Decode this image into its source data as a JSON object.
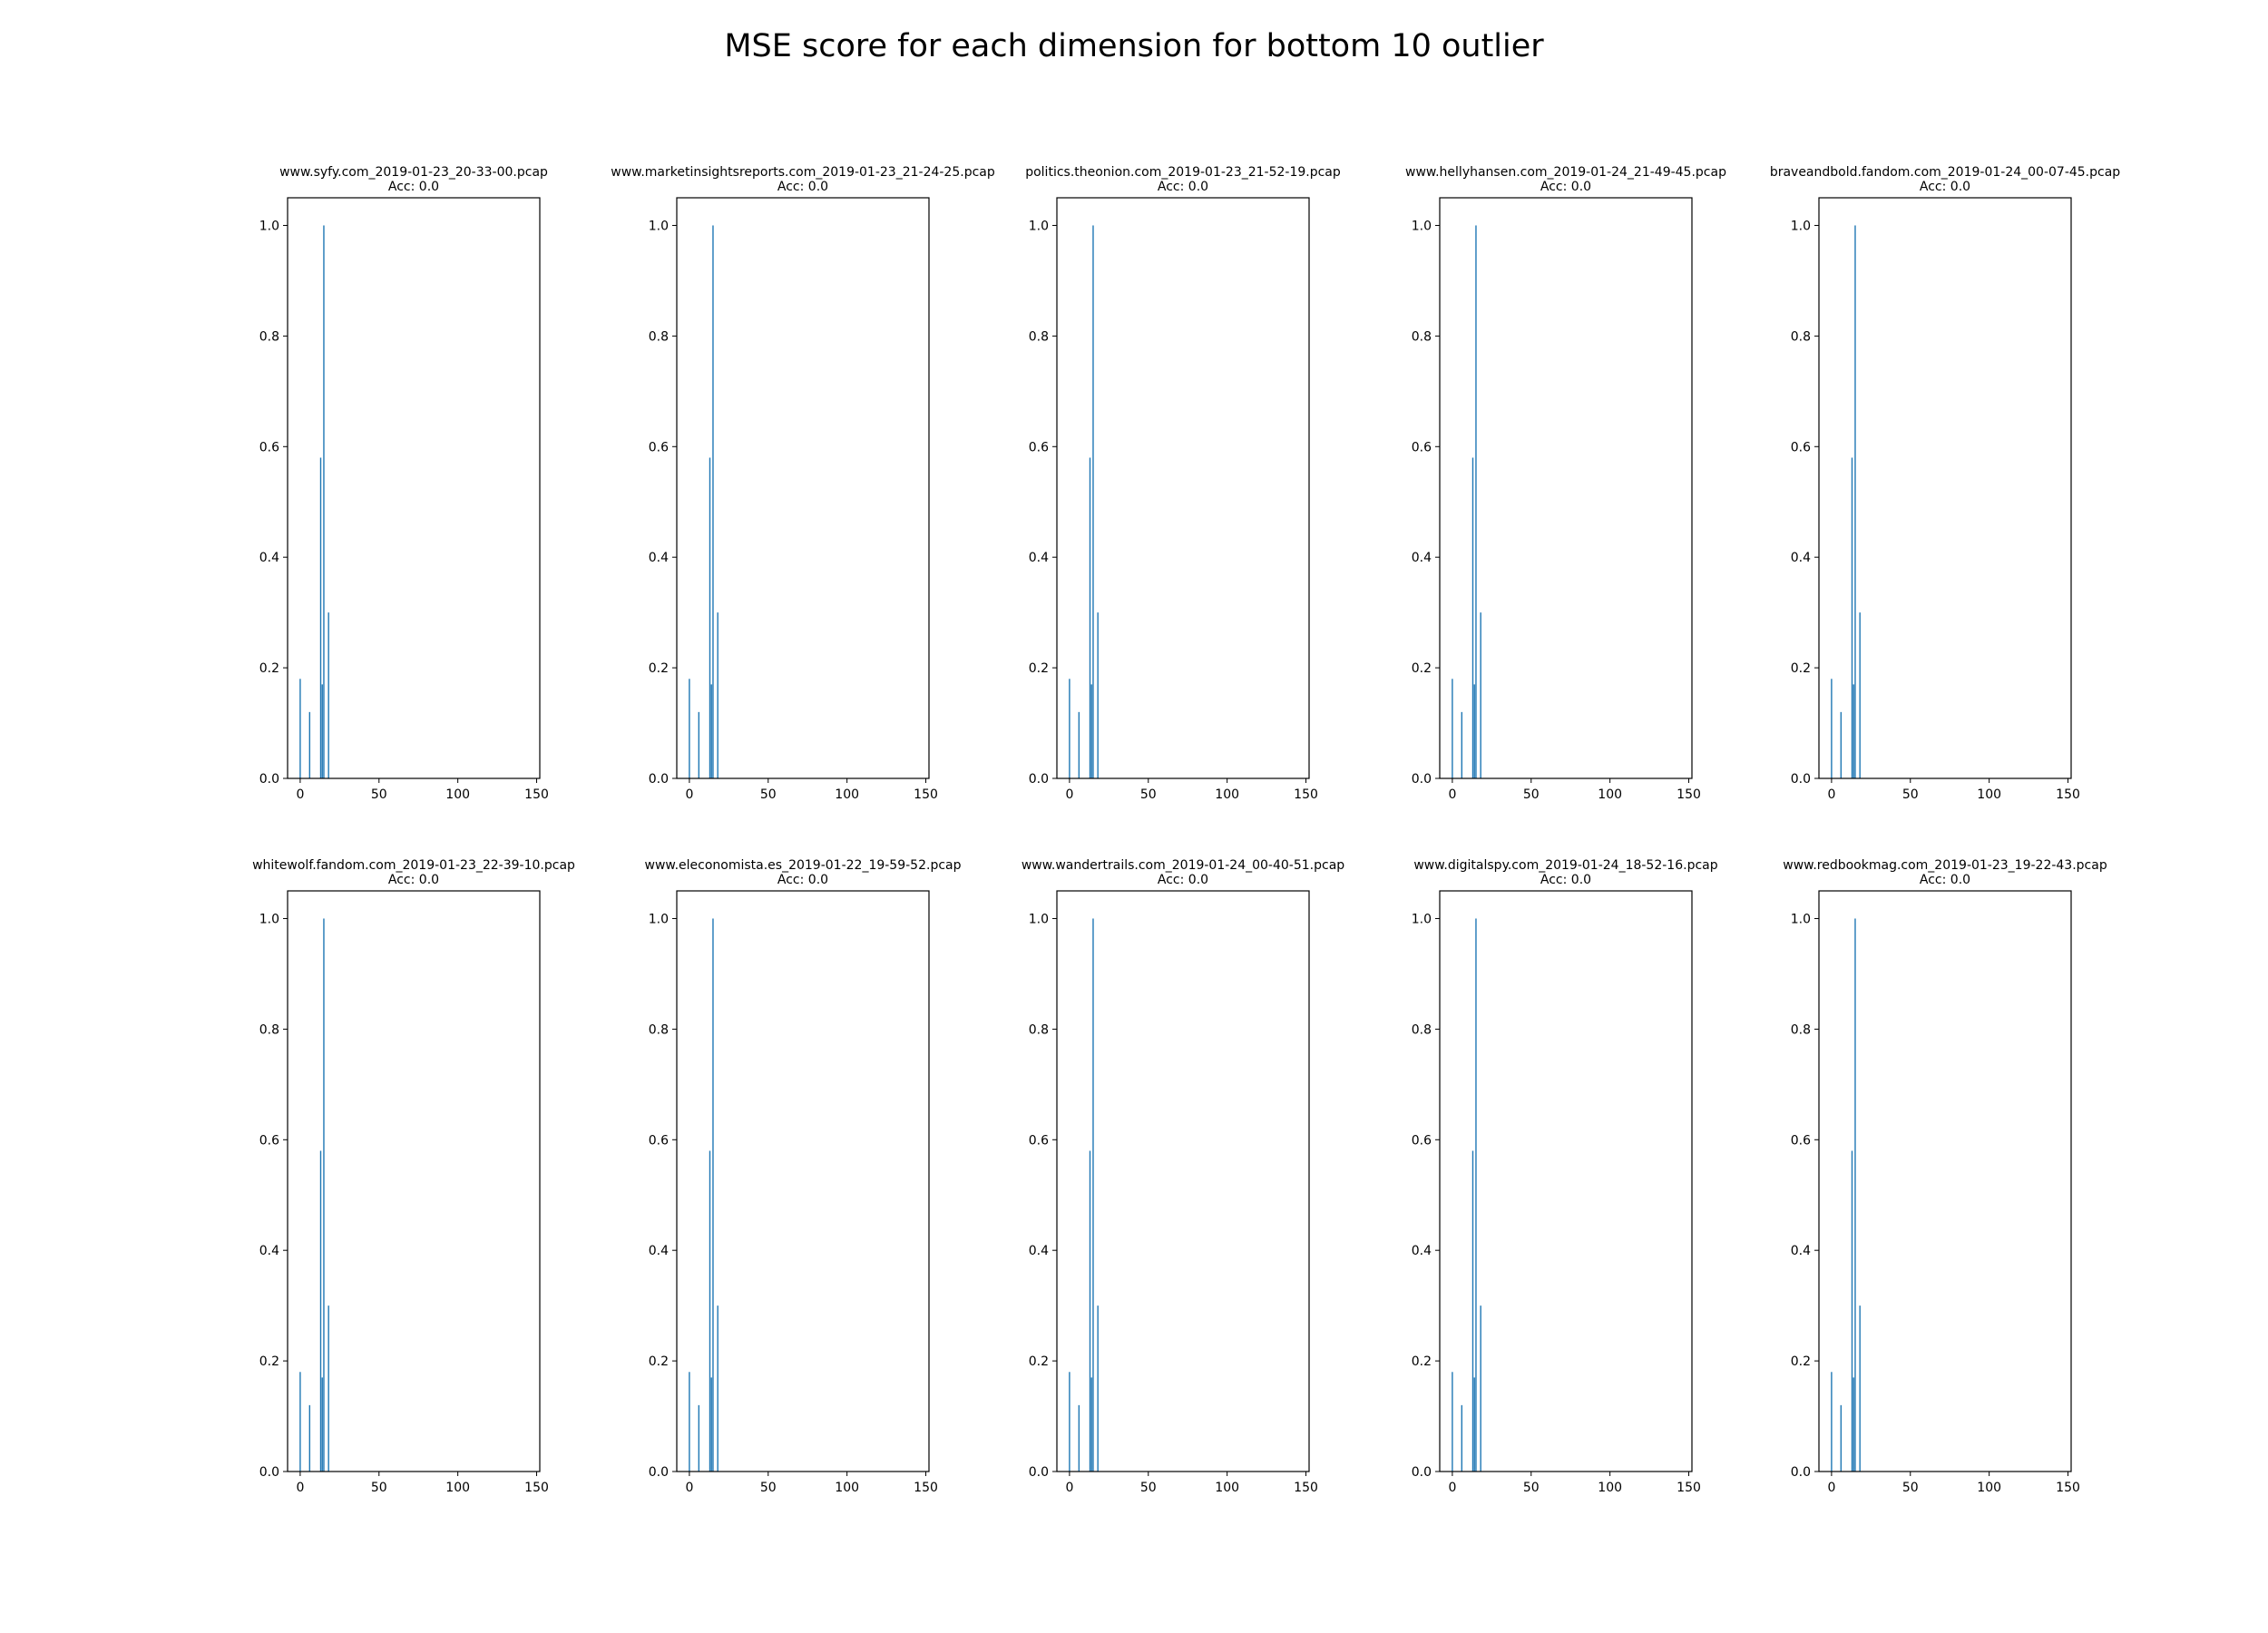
{
  "suptitle": "MSE score for each dimension for bottom 10 outlier",
  "bar_color": "#1f77b4",
  "chart_data": [
    {
      "type": "bar",
      "title": "www.syfy.com_2019-01-23_20-33-00.pcap",
      "subtitle": "Acc: 0.0",
      "x": [
        0,
        6,
        13,
        14,
        15,
        18
      ],
      "values": [
        0.18,
        0.12,
        0.58,
        0.17,
        1.0,
        0.3
      ],
      "xlim": [
        -8,
        152
      ],
      "ylim": [
        0,
        1.05
      ],
      "xticks": [
        0,
        50,
        100,
        150
      ],
      "yticks": [
        0.0,
        0.2,
        0.4,
        0.6,
        0.8,
        1.0
      ]
    },
    {
      "type": "bar",
      "title": "www.marketinsightsreports.com_2019-01-23_21-24-25.pcap",
      "subtitle": "Acc: 0.0",
      "x": [
        0,
        6,
        13,
        14,
        15,
        18
      ],
      "values": [
        0.18,
        0.12,
        0.58,
        0.17,
        1.0,
        0.3
      ],
      "xlim": [
        -8,
        152
      ],
      "ylim": [
        0,
        1.05
      ],
      "xticks": [
        0,
        50,
        100,
        150
      ],
      "yticks": [
        0.0,
        0.2,
        0.4,
        0.6,
        0.8,
        1.0
      ]
    },
    {
      "type": "bar",
      "title": "politics.theonion.com_2019-01-23_21-52-19.pcap",
      "subtitle": "Acc: 0.0",
      "x": [
        0,
        6,
        13,
        14,
        15,
        18
      ],
      "values": [
        0.18,
        0.12,
        0.58,
        0.17,
        1.0,
        0.3
      ],
      "xlim": [
        -8,
        152
      ],
      "ylim": [
        0,
        1.05
      ],
      "xticks": [
        0,
        50,
        100,
        150
      ],
      "yticks": [
        0.0,
        0.2,
        0.4,
        0.6,
        0.8,
        1.0
      ]
    },
    {
      "type": "bar",
      "title": "www.hellyhansen.com_2019-01-24_21-49-45.pcap",
      "subtitle": "Acc: 0.0",
      "x": [
        0,
        6,
        13,
        14,
        15,
        18
      ],
      "values": [
        0.18,
        0.12,
        0.58,
        0.17,
        1.0,
        0.3
      ],
      "xlim": [
        -8,
        152
      ],
      "ylim": [
        0,
        1.05
      ],
      "xticks": [
        0,
        50,
        100,
        150
      ],
      "yticks": [
        0.0,
        0.2,
        0.4,
        0.6,
        0.8,
        1.0
      ]
    },
    {
      "type": "bar",
      "title": "braveandbold.fandom.com_2019-01-24_00-07-45.pcap",
      "subtitle": "Acc: 0.0",
      "x": [
        0,
        6,
        13,
        14,
        15,
        18
      ],
      "values": [
        0.18,
        0.12,
        0.58,
        0.17,
        1.0,
        0.3
      ],
      "xlim": [
        -8,
        152
      ],
      "ylim": [
        0,
        1.05
      ],
      "xticks": [
        0,
        50,
        100,
        150
      ],
      "yticks": [
        0.0,
        0.2,
        0.4,
        0.6,
        0.8,
        1.0
      ]
    },
    {
      "type": "bar",
      "title": "whitewolf.fandom.com_2019-01-23_22-39-10.pcap",
      "subtitle": "Acc: 0.0",
      "x": [
        0,
        6,
        13,
        14,
        15,
        18
      ],
      "values": [
        0.18,
        0.12,
        0.58,
        0.17,
        1.0,
        0.3
      ],
      "xlim": [
        -8,
        152
      ],
      "ylim": [
        0,
        1.05
      ],
      "xticks": [
        0,
        50,
        100,
        150
      ],
      "yticks": [
        0.0,
        0.2,
        0.4,
        0.6,
        0.8,
        1.0
      ]
    },
    {
      "type": "bar",
      "title": "www.eleconomista.es_2019-01-22_19-59-52.pcap",
      "subtitle": "Acc: 0.0",
      "x": [
        0,
        6,
        13,
        14,
        15,
        18
      ],
      "values": [
        0.18,
        0.12,
        0.58,
        0.17,
        1.0,
        0.3
      ],
      "xlim": [
        -8,
        152
      ],
      "ylim": [
        0,
        1.05
      ],
      "xticks": [
        0,
        50,
        100,
        150
      ],
      "yticks": [
        0.0,
        0.2,
        0.4,
        0.6,
        0.8,
        1.0
      ]
    },
    {
      "type": "bar",
      "title": "www.wandertrails.com_2019-01-24_00-40-51.pcap",
      "subtitle": "Acc: 0.0",
      "x": [
        0,
        6,
        13,
        14,
        15,
        18
      ],
      "values": [
        0.18,
        0.12,
        0.58,
        0.17,
        1.0,
        0.3
      ],
      "xlim": [
        -8,
        152
      ],
      "ylim": [
        0,
        1.05
      ],
      "xticks": [
        0,
        50,
        100,
        150
      ],
      "yticks": [
        0.0,
        0.2,
        0.4,
        0.6,
        0.8,
        1.0
      ]
    },
    {
      "type": "bar",
      "title": "www.digitalspy.com_2019-01-24_18-52-16.pcap",
      "subtitle": "Acc: 0.0",
      "x": [
        0,
        6,
        13,
        14,
        15,
        18
      ],
      "values": [
        0.18,
        0.12,
        0.58,
        0.17,
        1.0,
        0.3
      ],
      "xlim": [
        -8,
        152
      ],
      "ylim": [
        0,
        1.05
      ],
      "xticks": [
        0,
        50,
        100,
        150
      ],
      "yticks": [
        0.0,
        0.2,
        0.4,
        0.6,
        0.8,
        1.0
      ]
    },
    {
      "type": "bar",
      "title": "www.redbookmag.com_2019-01-23_19-22-43.pcap",
      "subtitle": "Acc: 0.0",
      "x": [
        0,
        6,
        13,
        14,
        15,
        18
      ],
      "values": [
        0.18,
        0.12,
        0.58,
        0.17,
        1.0,
        0.3
      ],
      "xlim": [
        -8,
        152
      ],
      "ylim": [
        0,
        1.05
      ],
      "xticks": [
        0,
        50,
        100,
        150
      ],
      "yticks": [
        0.0,
        0.2,
        0.4,
        0.6,
        0.8,
        1.0
      ]
    }
  ]
}
